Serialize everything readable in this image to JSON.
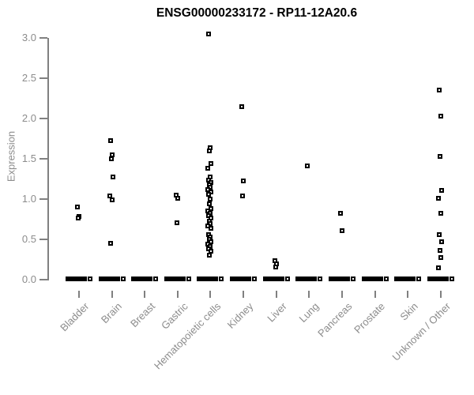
{
  "chart_data": {
    "type": "scatter",
    "title": "ENSG00000233172 - RP11-12A20.6",
    "ylabel": "Expression",
    "xlabel": "",
    "ylim": [
      0.0,
      3.0
    ],
    "yticks": [
      "0.0",
      "0.5",
      "1.0",
      "1.5",
      "2.0",
      "2.5",
      "3.0"
    ],
    "grid": false,
    "legend": false,
    "point_color": "#000000",
    "axis_color": "#808080",
    "text_color": "#8c8c8c",
    "title_color": "#000000",
    "categories": [
      "Bladder",
      "Brain",
      "Breast",
      "Gastric",
      "Hematopoietic cells",
      "Kidney",
      "Liver",
      "Lung",
      "Pancreas",
      "Prostate",
      "Skin",
      "Unknown / Other"
    ],
    "series": [
      {
        "name": "Bladder",
        "values": [
          0.9,
          0.78,
          0.76
        ]
      },
      {
        "name": "Brain",
        "values": [
          1.73,
          1.55,
          1.5,
          1.27,
          1.04,
          0.99,
          0.45
        ]
      },
      {
        "name": "Breast",
        "values": []
      },
      {
        "name": "Gastric",
        "values": [
          1.05,
          1.01,
          0.71
        ]
      },
      {
        "name": "Hematopoietic cells",
        "values": [
          3.05,
          1.64,
          1.6,
          1.44,
          1.38,
          1.27,
          1.24,
          1.21,
          1.18,
          1.15,
          1.12,
          1.09,
          1.06,
          1.0,
          0.94,
          0.88,
          0.85,
          0.82,
          0.79,
          0.76,
          0.73,
          0.7,
          0.67,
          0.64,
          0.56,
          0.53,
          0.5,
          0.47,
          0.44,
          0.41,
          0.38,
          0.35,
          0.3
        ]
      },
      {
        "name": "Kidney",
        "values": [
          2.15,
          1.23,
          1.04
        ]
      },
      {
        "name": "Liver",
        "values": [
          0.24,
          0.2,
          0.16
        ]
      },
      {
        "name": "Lung",
        "values": [
          1.41
        ]
      },
      {
        "name": "Pancreas",
        "values": [
          0.82,
          0.61
        ]
      },
      {
        "name": "Prostate",
        "values": []
      },
      {
        "name": "Skin",
        "values": []
      },
      {
        "name": "Unknown / Other",
        "values": [
          2.35,
          2.03,
          1.53,
          1.11,
          1.01,
          0.82,
          0.56,
          0.47,
          0.36,
          0.27,
          0.15
        ]
      }
    ],
    "zero_cluster_in_every_category": true
  }
}
